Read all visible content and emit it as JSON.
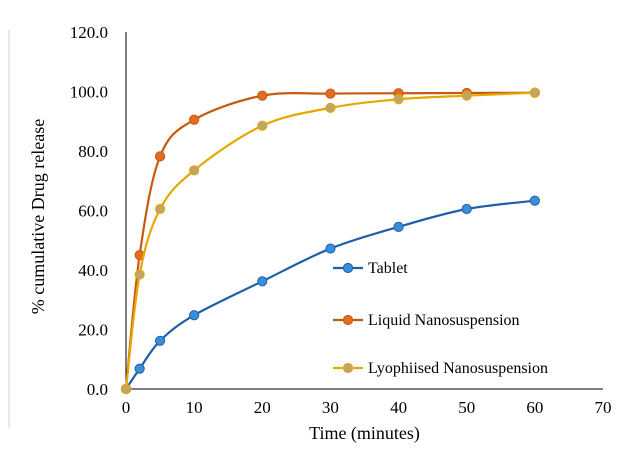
{
  "chart_data": {
    "type": "line",
    "title": "",
    "xlabel": "Time (minutes)",
    "ylabel": "% cumulative Drug release",
    "xlim": [
      0,
      70
    ],
    "ylim": [
      0,
      120
    ],
    "x_ticks": [
      "0",
      "10",
      "20",
      "30",
      "40",
      "50",
      "60",
      "70"
    ],
    "y_ticks": [
      "0.0",
      "20.0",
      "40.0",
      "60.0",
      "80.0",
      "100.0",
      "120.0"
    ],
    "grid": false,
    "legend_position": "inside-lower-right",
    "x": [
      0,
      2,
      5,
      10,
      20,
      30,
      40,
      50,
      60
    ],
    "series": [
      {
        "name": "Tablet",
        "color": "#1F5FA8",
        "marker_color": "#3B8EDB",
        "values": [
          0,
          6.8,
          16.2,
          24.8,
          36.2,
          47.2,
          54.5,
          60.5,
          63.3
        ]
      },
      {
        "name": "Liquid Nanosuspension",
        "color": "#C55A11",
        "marker_color": "#E46C1F",
        "values": [
          0,
          45.0,
          78.2,
          90.5,
          98.6,
          99.3,
          99.4,
          99.5,
          99.6
        ]
      },
      {
        "name": "Lyophiised Nanosuspension",
        "color": "#E6A800",
        "marker_color": "#BFA56A",
        "values": [
          0,
          38.5,
          60.5,
          73.5,
          88.5,
          94.5,
          97.4,
          98.6,
          99.6
        ]
      }
    ]
  }
}
